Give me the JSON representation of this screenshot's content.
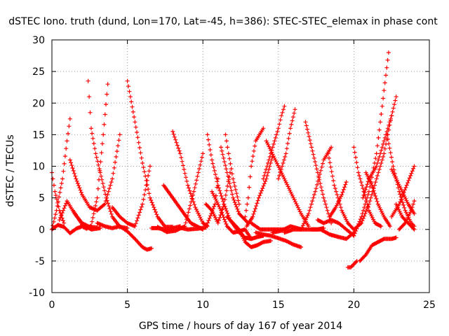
{
  "chart_data": {
    "type": "scatter",
    "title": "dSTEC Iono. truth (dund, Lon=170, Lat=-45, h=386): STEC-STEC_elemax in phase cont",
    "xlabel": "GPS time / hours of day 167 of year 2014",
    "ylabel": "dSTEC  / TECUs",
    "xlim": [
      0,
      25
    ],
    "ylim": [
      -10,
      30
    ],
    "xticks": [
      "0",
      "5",
      "10",
      "15",
      "20",
      "25"
    ],
    "yticks": [
      "-10",
      "-5",
      "0",
      "5",
      "10",
      "15",
      "20",
      "25",
      "30"
    ],
    "grid": true,
    "marker": "+",
    "color": "#ff0000",
    "series": [
      {
        "x": [
          0.0,
          0.3,
          0.7,
          1.0,
          1.2
        ],
        "y": [
          0.0,
          3.0,
          8.0,
          14.0,
          17.5
        ]
      },
      {
        "x": [
          0.0,
          0.2,
          0.5,
          0.8
        ],
        "y": [
          9.0,
          6.0,
          3.0,
          1.0
        ]
      },
      {
        "x": [
          0.0,
          0.4,
          0.8,
          1.2,
          1.6,
          2.0,
          2.3,
          2.6,
          3.0,
          3.4,
          3.7
        ],
        "y": [
          0.0,
          0.7,
          0.4,
          -0.6,
          0.1,
          0.5,
          0.1,
          0.6,
          5.0,
          15.0,
          23.0
        ]
      },
      {
        "x": [
          2.4,
          2.6,
          2.9,
          3.2,
          3.6,
          4.0,
          4.5,
          5.0
        ],
        "y": [
          23.5,
          16.0,
          12.0,
          9.0,
          5.0,
          2.0,
          0.4,
          0.2
        ]
      },
      {
        "x": [
          0.5,
          1.0,
          1.5,
          2.0,
          2.5,
          3.0
        ],
        "y": [
          1.5,
          4.5,
          2.5,
          1.0,
          0.4,
          0.3
        ]
      },
      {
        "x": [
          1.2,
          1.6,
          2.0,
          2.5,
          3.0,
          3.5,
          4.0,
          4.5
        ],
        "y": [
          11.0,
          8.0,
          5.5,
          3.5,
          3.0,
          4.0,
          8.0,
          15.0
        ]
      },
      {
        "x": [
          1.4,
          2.0,
          2.6,
          3.2
        ],
        "y": [
          3.0,
          0.8,
          0.0,
          0.2
        ]
      },
      {
        "x": [
          3.0,
          3.5,
          4.0,
          4.5,
          5.0,
          5.5,
          6.0,
          6.3,
          6.6
        ],
        "y": [
          1.0,
          0.5,
          0.2,
          0.5,
          -0.3,
          -1.5,
          -2.8,
          -3.2,
          -3.0
        ]
      },
      {
        "x": [
          4.0,
          4.5,
          5.0,
          5.5,
          6.0,
          6.5
        ],
        "y": [
          3.5,
          2.0,
          1.0,
          0.5,
          4.0,
          10.0
        ]
      },
      {
        "x": [
          5.0,
          5.2,
          5.5,
          6.0,
          6.5,
          7.0,
          7.5,
          8.0
        ],
        "y": [
          23.5,
          21.0,
          17.0,
          10.5,
          5.0,
          2.0,
          0.4,
          0.4
        ]
      },
      {
        "x": [
          6.6,
          7.0,
          7.5,
          8.0,
          8.5
        ],
        "y": [
          0.2,
          0.2,
          0.0,
          0.2,
          0.5
        ]
      },
      {
        "x": [
          7.4,
          8.0,
          8.6,
          9.2,
          9.6,
          10.0
        ],
        "y": [
          7.0,
          5.0,
          3.0,
          1.0,
          0.5,
          0.0
        ]
      },
      {
        "x": [
          7.0,
          7.6,
          8.2,
          8.8,
          9.4,
          10.0
        ],
        "y": [
          0.4,
          -0.4,
          -0.2,
          0.5,
          6.0,
          12.0
        ]
      },
      {
        "x": [
          8.0,
          8.5,
          9.0,
          9.5,
          10.0,
          10.3
        ],
        "y": [
          15.5,
          12.0,
          7.0,
          3.5,
          1.0,
          0.5
        ]
      },
      {
        "x": [
          8.4,
          9.0,
          9.6,
          10.2,
          10.8,
          11.0
        ],
        "y": [
          0.3,
          0.0,
          0.1,
          0.3,
          4.0,
          8.0
        ]
      },
      {
        "x": [
          10.3,
          10.6,
          11.0,
          11.4,
          11.8,
          12.2,
          12.6
        ],
        "y": [
          15.0,
          11.0,
          7.0,
          4.0,
          1.5,
          0.2,
          -0.8
        ]
      },
      {
        "x": [
          10.6,
          11.2,
          11.6,
          12.0,
          12.4,
          12.8,
          13.2
        ],
        "y": [
          6.0,
          3.0,
          0.5,
          -0.5,
          -0.3,
          0.0,
          -1.5
        ]
      },
      {
        "x": [
          10.2,
          10.6,
          11.0,
          11.4,
          11.8
        ],
        "y": [
          4.0,
          3.0,
          1.0,
          4.0,
          9.0
        ]
      },
      {
        "x": [
          11.5,
          11.7,
          12.0,
          12.4
        ],
        "y": [
          15.0,
          12.0,
          8.0,
          4.0
        ]
      },
      {
        "x": [
          11.2,
          11.6,
          12.0,
          12.4,
          12.8,
          13.0
        ],
        "y": [
          13.0,
          9.0,
          5.0,
          2.5,
          1.5,
          1.0
        ]
      },
      {
        "x": [
          11.6,
          12.0,
          12.4,
          12.8,
          13.2,
          13.6,
          14.0,
          14.5
        ],
        "y": [
          2.0,
          1.0,
          0.0,
          -2.0,
          -2.8,
          -2.5,
          -2.0,
          -1.8
        ]
      },
      {
        "x": [
          12.4,
          12.8,
          13.2,
          13.6,
          14.0
        ],
        "y": [
          -0.5,
          -1.3,
          -1.5,
          -1.2,
          -1.0
        ]
      },
      {
        "x": [
          12.8,
          13.0,
          13.2,
          13.5,
          14.0
        ],
        "y": [
          2.0,
          5.0,
          10.0,
          14.0,
          16.0
        ]
      },
      {
        "x": [
          12.9,
          13.3,
          13.7,
          14.2,
          14.6
        ],
        "y": [
          0.5,
          2.0,
          5.0,
          8.0,
          11.5
        ]
      },
      {
        "x": [
          13.2,
          13.8,
          14.4,
          15.0,
          15.5
        ],
        "y": [
          1.0,
          0.0,
          0.0,
          0.0,
          0.0
        ]
      },
      {
        "x": [
          13.5,
          14.0,
          14.5,
          15.0,
          15.5,
          16.0,
          16.5
        ],
        "y": [
          -0.5,
          -0.8,
          -1.0,
          -1.4,
          -1.8,
          -2.4,
          -2.8
        ]
      },
      {
        "x": [
          14.0,
          14.5,
          15.0,
          15.2,
          15.4
        ],
        "y": [
          8.0,
          12.0,
          16.0,
          18.0,
          19.5
        ]
      },
      {
        "x": [
          14.6,
          15.2,
          15.8,
          16.4
        ],
        "y": [
          -0.5,
          -0.2,
          0.5,
          0.1
        ]
      },
      {
        "x": [
          15.0,
          15.5,
          15.8,
          16.1
        ],
        "y": [
          8.0,
          12.0,
          16.0,
          19.0
        ]
      },
      {
        "x": [
          14.2,
          14.8,
          15.4,
          16.0,
          16.5,
          17.0
        ],
        "y": [
          14.0,
          11.0,
          8.0,
          5.0,
          2.5,
          0.5
        ]
      },
      {
        "x": [
          15.4,
          16.0,
          16.6,
          17.2,
          17.6,
          18.0
        ],
        "y": [
          -0.5,
          0.0,
          0.0,
          0.0,
          0.0,
          0.2
        ]
      },
      {
        "x": [
          16.8,
          17.2,
          17.6,
          18.0,
          18.5
        ],
        "y": [
          17.0,
          13.0,
          9.0,
          5.0,
          1.0
        ]
      },
      {
        "x": [
          16.5,
          17.0,
          17.5,
          18.0,
          18.5
        ],
        "y": [
          0.0,
          2.5,
          6.5,
          11.0,
          13.0
        ]
      },
      {
        "x": [
          17.6,
          18.0,
          18.5,
          19.0,
          19.5,
          20.0
        ],
        "y": [
          1.5,
          1.0,
          1.5,
          1.0,
          0.0,
          -1.0
        ]
      },
      {
        "x": [
          18.3,
          18.7,
          19.2,
          19.6,
          20.0
        ],
        "y": [
          12.0,
          7.0,
          3.0,
          1.0,
          0.0
        ]
      },
      {
        "x": [
          18.4,
          18.8,
          19.2,
          19.5
        ],
        "y": [
          2.0,
          3.5,
          5.5,
          7.5
        ]
      },
      {
        "x": [
          17.2,
          17.8,
          18.4,
          19.0,
          19.5,
          20.0
        ],
        "y": [
          0.0,
          0.0,
          -0.8,
          -1.2,
          -1.5,
          -0.5
        ]
      },
      {
        "x": [
          19.6,
          19.8,
          20.0,
          20.2
        ],
        "y": [
          -6.0,
          -6.0,
          -5.5,
          -5.0
        ]
      },
      {
        "x": [
          20.0,
          20.5,
          21.0,
          21.5,
          22.0,
          22.3
        ],
        "y": [
          -1.0,
          2.0,
          6.0,
          12.0,
          22.0,
          28.0
        ]
      },
      {
        "x": [
          20.0,
          20.3,
          20.6,
          21.0,
          21.4,
          21.8
        ],
        "y": [
          13.0,
          9.0,
          6.5,
          3.0,
          1.0,
          0.5
        ]
      },
      {
        "x": [
          20.0,
          20.5,
          21.0,
          21.5,
          22.0,
          22.5
        ],
        "y": [
          0.0,
          1.0,
          4.0,
          8.0,
          12.0,
          18.0
        ]
      },
      {
        "x": [
          20.4,
          20.8,
          21.2,
          21.6,
          22.0,
          22.5,
          22.8
        ],
        "y": [
          -5.0,
          -4.0,
          -2.5,
          -2.0,
          -1.5,
          -1.5,
          -1.3
        ]
      },
      {
        "x": [
          20.6,
          21.0,
          21.5,
          22.0,
          22.5,
          22.8
        ],
        "y": [
          5.0,
          8.0,
          10.0,
          14.0,
          18.0,
          21.0
        ]
      },
      {
        "x": [
          20.8,
          21.2,
          21.6,
          22.0,
          22.4
        ],
        "y": [
          9.0,
          7.0,
          4.0,
          2.0,
          0.5
        ]
      },
      {
        "x": [
          22.2,
          22.6,
          23.0,
          23.4,
          23.8,
          24.0
        ],
        "y": [
          15.0,
          10.0,
          6.0,
          3.0,
          1.0,
          0.5
        ]
      },
      {
        "x": [
          22.5,
          22.8,
          23.2,
          23.6,
          24.0
        ],
        "y": [
          9.5,
          8.0,
          6.0,
          4.0,
          2.5
        ]
      },
      {
        "x": [
          22.5,
          23.0,
          23.5,
          24.0
        ],
        "y": [
          2.0,
          4.0,
          7.0,
          10.0
        ]
      },
      {
        "x": [
          22.8,
          23.2,
          23.6,
          24.0
        ],
        "y": [
          4.0,
          2.0,
          1.0,
          0.0
        ]
      },
      {
        "x": [
          23.0,
          23.4,
          23.8,
          24.0
        ],
        "y": [
          0.0,
          1.0,
          3.0,
          4.5
        ]
      }
    ]
  }
}
